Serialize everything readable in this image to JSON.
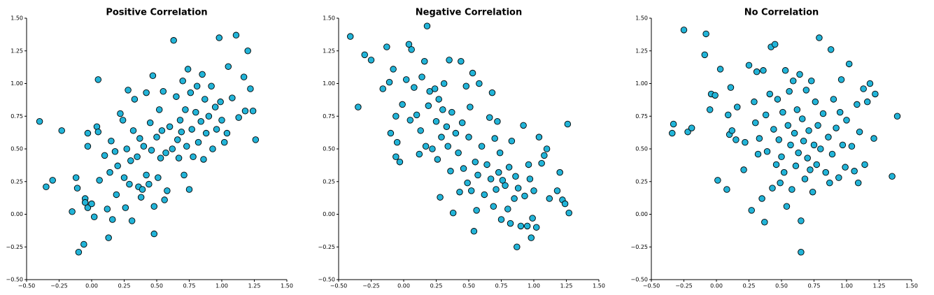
{
  "chart_data": [
    {
      "type": "scatter",
      "title": "Positive Correlation",
      "color": "#22b4d8",
      "edgecolor": "#000000",
      "x": [
        -0.4,
        -0.35,
        -0.3,
        -0.23,
        -0.15,
        -0.12,
        -0.11,
        -0.1,
        -0.06,
        -0.05,
        -0.05,
        -0.03,
        -0.03,
        -0.03,
        0.0,
        0.02,
        0.04,
        0.05,
        0.05,
        0.06,
        0.1,
        0.12,
        0.13,
        0.14,
        0.15,
        0.16,
        0.18,
        0.19,
        0.2,
        0.22,
        0.24,
        0.25,
        0.26,
        0.27,
        0.28,
        0.29,
        0.3,
        0.31,
        0.32,
        0.33,
        0.35,
        0.36,
        0.37,
        0.38,
        0.39,
        0.4,
        0.42,
        0.42,
        0.44,
        0.45,
        0.46,
        0.47,
        0.48,
        0.48,
        0.5,
        0.51,
        0.52,
        0.53,
        0.54,
        0.55,
        0.56,
        0.57,
        0.58,
        0.6,
        0.62,
        0.63,
        0.65,
        0.66,
        0.67,
        0.68,
        0.69,
        0.7,
        0.71,
        0.72,
        0.73,
        0.74,
        0.75,
        0.76,
        0.77,
        0.78,
        0.8,
        0.81,
        0.82,
        0.84,
        0.85,
        0.86,
        0.87,
        0.88,
        0.9,
        0.92,
        0.93,
        0.95,
        0.96,
        0.98,
        0.99,
        1.0,
        1.02,
        1.04,
        1.05,
        1.08,
        1.11,
        1.13,
        1.17,
        1.18,
        1.2,
        1.22,
        1.24,
        1.26
      ],
      "y": [
        0.71,
        0.21,
        0.26,
        0.64,
        0.02,
        0.28,
        0.2,
        -0.29,
        -0.23,
        0.12,
        0.09,
        0.62,
        0.52,
        0.05,
        0.08,
        -0.02,
        0.67,
        1.03,
        0.63,
        0.26,
        0.45,
        0.04,
        -0.18,
        0.32,
        0.56,
        -0.04,
        0.48,
        0.15,
        0.37,
        0.77,
        0.72,
        0.28,
        0.05,
        0.5,
        0.95,
        0.23,
        0.41,
        -0.05,
        0.64,
        0.88,
        0.44,
        0.21,
        0.58,
        0.13,
        0.19,
        0.52,
        0.93,
        0.3,
        0.23,
        0.7,
        0.49,
        1.06,
        0.06,
        -0.15,
        0.59,
        0.28,
        0.8,
        0.43,
        0.64,
        0.94,
        0.11,
        0.47,
        0.18,
        0.67,
        0.5,
        1.33,
        0.9,
        0.57,
        0.43,
        0.72,
        0.63,
        1.02,
        0.3,
        0.8,
        0.52,
        1.11,
        0.19,
        0.93,
        0.65,
        0.44,
        0.78,
        0.98,
        0.55,
        0.71,
        1.07,
        0.42,
        0.88,
        0.62,
        0.75,
        0.98,
        0.5,
        0.82,
        0.65,
        1.35,
        0.86,
        0.72,
        0.55,
        0.62,
        1.13,
        0.89,
        1.37,
        0.74,
        1.05,
        0.79,
        1.25,
        0.96,
        0.79,
        0.57
      ],
      "xlim": [
        -0.5,
        1.5
      ],
      "ylim": [
        -0.5,
        1.5
      ],
      "xticks": [
        {
          "value": -0.5,
          "label": "−0.50"
        },
        {
          "value": -0.25,
          "label": "−0.25"
        },
        {
          "value": 0,
          "label": "0.00"
        },
        {
          "value": 0.25,
          "label": "0.25"
        },
        {
          "value": 0.5,
          "label": "0.50"
        },
        {
          "value": 0.75,
          "label": "0.75"
        },
        {
          "value": 1,
          "label": "1.00"
        },
        {
          "value": 1.25,
          "label": "1.25"
        },
        {
          "value": 1.5,
          "label": "1.50"
        }
      ],
      "yticks": [
        {
          "value": -0.5,
          "label": "−0.50"
        },
        {
          "value": -0.25,
          "label": "−0.25"
        },
        {
          "value": 0,
          "label": "0.00"
        },
        {
          "value": 0.25,
          "label": "0.25"
        },
        {
          "value": 0.5,
          "label": "0.50"
        },
        {
          "value": 0.75,
          "label": "0.75"
        },
        {
          "value": 1,
          "label": "1.00"
        },
        {
          "value": 1.25,
          "label": "1.25"
        },
        {
          "value": 1.5,
          "label": "1.50"
        }
      ]
    },
    {
      "type": "scatter",
      "title": "Negative Correlation",
      "color": "#22b4d8",
      "edgecolor": "#000000",
      "x": [
        -0.41,
        -0.35,
        -0.3,
        -0.25,
        -0.16,
        -0.13,
        -0.11,
        -0.1,
        -0.08,
        -0.06,
        -0.06,
        -0.05,
        -0.03,
        -0.01,
        0.02,
        0.04,
        0.05,
        0.06,
        0.08,
        0.1,
        0.12,
        0.13,
        0.14,
        0.16,
        0.17,
        0.18,
        0.19,
        0.2,
        0.22,
        0.24,
        0.25,
        0.26,
        0.27,
        0.28,
        0.29,
        0.3,
        0.31,
        0.33,
        0.34,
        0.35,
        0.36,
        0.37,
        0.38,
        0.4,
        0.42,
        0.43,
        0.44,
        0.45,
        0.46,
        0.48,
        0.49,
        0.5,
        0.51,
        0.52,
        0.53,
        0.54,
        0.55,
        0.56,
        0.57,
        0.58,
        0.6,
        0.62,
        0.64,
        0.66,
        0.67,
        0.68,
        0.69,
        0.7,
        0.71,
        0.72,
        0.73,
        0.74,
        0.75,
        0.76,
        0.78,
        0.8,
        0.81,
        0.82,
        0.83,
        0.85,
        0.86,
        0.87,
        0.88,
        0.9,
        0.92,
        0.93,
        0.95,
        0.96,
        0.97,
        0.98,
        0.99,
        1.0,
        1.02,
        1.04,
        1.06,
        1.08,
        1.1,
        1.12,
        1.18,
        1.2,
        1.22,
        1.24,
        1.26,
        1.27
      ],
      "y": [
        1.36,
        0.82,
        1.22,
        1.18,
        0.96,
        1.28,
        1.01,
        0.62,
        1.11,
        0.75,
        0.44,
        0.55,
        0.4,
        0.84,
        1.03,
        1.3,
        0.72,
        1.26,
        0.97,
        0.76,
        0.46,
        0.64,
        1.05,
        1.17,
        0.52,
        1.44,
        0.83,
        0.94,
        0.5,
        0.96,
        0.71,
        0.42,
        0.88,
        0.13,
        0.59,
        0.8,
        1.0,
        0.67,
        0.52,
        1.18,
        0.33,
        0.78,
        0.01,
        0.62,
        0.47,
        0.17,
        1.17,
        0.7,
        0.35,
        0.98,
        0.24,
        0.59,
        0.82,
        0.18,
        1.08,
        -0.13,
        0.4,
        0.03,
        0.3,
        1.0,
        0.52,
        0.15,
        0.38,
        0.74,
        0.27,
        0.93,
        0.06,
        0.58,
        0.19,
        0.71,
        0.32,
        0.47,
        -0.04,
        0.26,
        0.22,
        0.04,
        0.36,
        -0.07,
        0.56,
        0.12,
        0.29,
        -0.25,
        0.2,
        -0.09,
        0.68,
        0.14,
        -0.09,
        0.38,
        0.27,
        -0.18,
        -0.03,
        0.18,
        -0.1,
        0.59,
        0.39,
        0.45,
        0.5,
        0.12,
        0.18,
        0.32,
        0.11,
        0.08,
        0.69,
        0.01
      ],
      "xlim": [
        -0.5,
        1.5
      ],
      "ylim": [
        -0.5,
        1.5
      ],
      "xticks": [
        {
          "value": -0.5,
          "label": "−0.50"
        },
        {
          "value": -0.25,
          "label": "−0.25"
        },
        {
          "value": 0,
          "label": "0.00"
        },
        {
          "value": 0.25,
          "label": "0.25"
        },
        {
          "value": 0.5,
          "label": "0.50"
        },
        {
          "value": 0.75,
          "label": "0.75"
        },
        {
          "value": 1,
          "label": "1.00"
        },
        {
          "value": 1.25,
          "label": "1.25"
        },
        {
          "value": 1.5,
          "label": "1.50"
        }
      ],
      "yticks": [
        {
          "value": -0.5,
          "label": "−0.50"
        },
        {
          "value": -0.25,
          "label": "−0.25"
        },
        {
          "value": 0,
          "label": "0.00"
        },
        {
          "value": 0.25,
          "label": "0.25"
        },
        {
          "value": 0.5,
          "label": "0.50"
        },
        {
          "value": 0.75,
          "label": "0.75"
        },
        {
          "value": 1,
          "label": "1.00"
        },
        {
          "value": 1.25,
          "label": "1.25"
        },
        {
          "value": 1.5,
          "label": "1.50"
        }
      ]
    },
    {
      "type": "scatter",
      "title": "No Correlation",
      "color": "#22b4d8",
      "edgecolor": "#000000",
      "x": [
        -0.34,
        -0.33,
        -0.25,
        -0.22,
        -0.19,
        -0.09,
        -0.08,
        -0.05,
        -0.04,
        -0.01,
        0.01,
        0.03,
        0.08,
        0.09,
        0.1,
        0.11,
        0.12,
        0.15,
        0.16,
        0.21,
        0.22,
        0.25,
        0.27,
        0.29,
        0.3,
        0.31,
        0.32,
        0.33,
        0.35,
        0.36,
        0.37,
        0.38,
        0.39,
        0.41,
        0.42,
        0.43,
        0.44,
        0.45,
        0.46,
        0.47,
        0.48,
        0.49,
        0.5,
        0.51,
        0.52,
        0.53,
        0.54,
        0.55,
        0.56,
        0.57,
        0.58,
        0.59,
        0.6,
        0.61,
        0.62,
        0.63,
        0.64,
        0.65,
        0.65,
        0.66,
        0.67,
        0.68,
        0.69,
        0.7,
        0.71,
        0.72,
        0.73,
        0.74,
        0.75,
        0.76,
        0.77,
        0.78,
        0.79,
        0.8,
        0.82,
        0.84,
        0.86,
        0.87,
        0.88,
        0.89,
        0.9,
        0.92,
        0.94,
        0.95,
        0.96,
        0.97,
        0.99,
        1.0,
        1.02,
        1.04,
        1.06,
        1.08,
        1.09,
        1.1,
        1.13,
        1.14,
        1.16,
        1.18,
        1.21,
        1.22,
        1.35,
        1.39
      ],
      "y": [
        0.62,
        0.69,
        1.41,
        0.63,
        0.66,
        1.22,
        1.38,
        0.8,
        0.92,
        0.91,
        0.26,
        1.11,
        0.19,
        0.76,
        0.61,
        0.97,
        0.64,
        0.57,
        0.82,
        0.34,
        0.55,
        1.14,
        0.03,
        0.86,
        0.7,
        1.09,
        0.46,
        0.58,
        0.12,
        1.1,
        -0.06,
        0.76,
        0.48,
        0.92,
        1.28,
        0.2,
        0.65,
        1.3,
        0.38,
        0.88,
        0.57,
        0.24,
        0.44,
        0.78,
        0.32,
        1.1,
        0.06,
        0.68,
        0.94,
        0.53,
        0.19,
        1.02,
        0.62,
        0.37,
        0.8,
        0.47,
        1.07,
        -0.29,
        -0.05,
        0.73,
        0.56,
        0.27,
        0.95,
        0.43,
        0.64,
        0.34,
        1.02,
        0.17,
        0.53,
        0.86,
        0.38,
        0.68,
        1.35,
        0.5,
        0.77,
        0.32,
        0.59,
        0.24,
        1.26,
        0.46,
        0.88,
        0.66,
        0.28,
        0.78,
        1.03,
        0.53,
        0.36,
        0.72,
        1.15,
        0.52,
        0.33,
        0.84,
        0.24,
        0.63,
        0.96,
        0.38,
        0.86,
        1.0,
        0.58,
        0.92,
        0.29,
        0.75
      ],
      "xlim": [
        -0.5,
        1.5
      ],
      "ylim": [
        -0.5,
        1.5
      ],
      "xticks": [
        {
          "value": -0.5,
          "label": "−0.50"
        },
        {
          "value": -0.25,
          "label": "−0.25"
        },
        {
          "value": 0,
          "label": "0.00"
        },
        {
          "value": 0.25,
          "label": "0.25"
        },
        {
          "value": 0.5,
          "label": "0.50"
        },
        {
          "value": 0.75,
          "label": "0.75"
        },
        {
          "value": 1,
          "label": "1.00"
        },
        {
          "value": 1.25,
          "label": "1.25"
        },
        {
          "value": 1.5,
          "label": "1.50"
        }
      ],
      "yticks": [
        {
          "value": -0.5,
          "label": "−0.50"
        },
        {
          "value": -0.25,
          "label": "−0.25"
        },
        {
          "value": 0,
          "label": "0.00"
        },
        {
          "value": 0.25,
          "label": "0.25"
        },
        {
          "value": 0.5,
          "label": "0.50"
        },
        {
          "value": 0.75,
          "label": "0.75"
        },
        {
          "value": 1,
          "label": "1.00"
        },
        {
          "value": 1.25,
          "label": "1.25"
        },
        {
          "value": 1.5,
          "label": "1.50"
        }
      ]
    }
  ]
}
